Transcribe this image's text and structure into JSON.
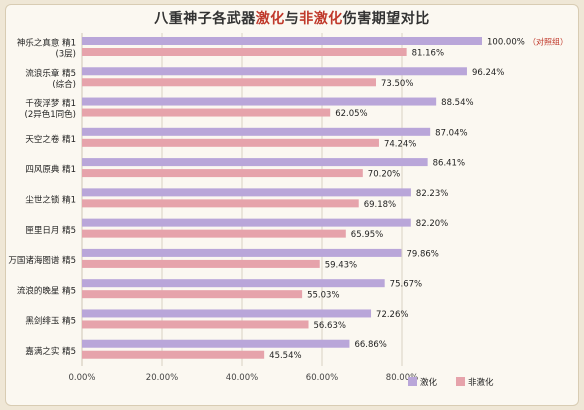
{
  "title": {
    "prefix": "八重神子各武器",
    "highlight1": "激化",
    "connector": "与",
    "highlight2": "非激化",
    "suffix": "伤害期望对比"
  },
  "colors": {
    "primary": "#b9a6d9",
    "secondary": "#e6a3ab",
    "accent_text": "#c0392b",
    "text": "#333333"
  },
  "chart_data": {
    "type": "bar",
    "orientation": "horizontal",
    "categories": [
      [
        "神乐之真意 精1",
        "(3层)"
      ],
      [
        "流浪乐章 精5",
        "(综合)"
      ],
      [
        "千夜浮梦 精1",
        "(2异色1同色)"
      ],
      [
        "天空之卷 精1"
      ],
      [
        "四风原典 精1"
      ],
      [
        "尘世之锁 精1"
      ],
      [
        "匣里日月 精5"
      ],
      [
        "万国诸海图谱 精5"
      ],
      [
        "流浪的晚星 精5"
      ],
      [
        "黑剑绯玉 精5"
      ],
      [
        "嘉满之实 精5"
      ]
    ],
    "series": [
      {
        "name": "激化",
        "color": "#b9a6d9",
        "values": [
          100.0,
          96.24,
          88.54,
          87.04,
          86.41,
          82.23,
          82.2,
          79.86,
          75.67,
          72.26,
          66.86
        ]
      },
      {
        "name": "非激化",
        "color": "#e6a3ab",
        "values": [
          81.16,
          73.5,
          62.05,
          74.24,
          70.2,
          69.18,
          65.95,
          59.43,
          55.03,
          56.63,
          45.54
        ]
      }
    ],
    "value_labels": [
      [
        "100.00%",
        "81.16%"
      ],
      [
        "96.24%",
        "73.50%"
      ],
      [
        "88.54%",
        "62.05%"
      ],
      [
        "87.04%",
        "74.24%"
      ],
      [
        "86.41%",
        "70.20%"
      ],
      [
        "82.23%",
        "69.18%"
      ],
      [
        "82.20%",
        "65.95%"
      ],
      [
        "79.86%",
        "59.43%"
      ],
      [
        "75.67%",
        "55.03%"
      ],
      [
        "72.26%",
        "56.63%"
      ],
      [
        "66.86%",
        "45.54%"
      ]
    ],
    "annotation": "（对照组）",
    "x_ticks": [
      0,
      20,
      40,
      60,
      80
    ],
    "x_tick_labels": [
      "0.00%",
      "20.00%",
      "40.00%",
      "60.00%",
      "80.00%"
    ],
    "xlim": [
      0,
      100
    ],
    "grid": true,
    "legend_position": "bottom-right"
  }
}
